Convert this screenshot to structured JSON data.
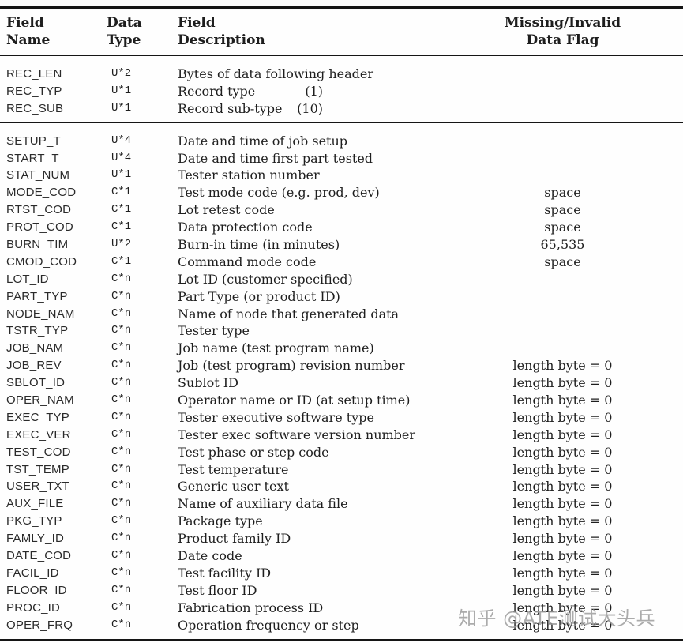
{
  "page": {
    "background": "#fefefe",
    "text_color": "#1e1e1e",
    "rule_color": "#151515"
  },
  "watermark": {
    "text": "知乎 @ATE测试大头兵",
    "color": "#9a9a9a"
  },
  "table": {
    "headers": {
      "field_name": {
        "line1": "Field",
        "line2": "Name"
      },
      "data_type": {
        "line1": "Data",
        "line2": "Type"
      },
      "field_description": {
        "line1": "Field",
        "line2": "Description"
      },
      "missing_flag": {
        "line1": "Missing/Invalid",
        "line2": "Data Flag"
      }
    },
    "sections": [
      {
        "name": "record-header-rows",
        "rows": [
          {
            "name": "REC_LEN",
            "type": "U*2",
            "desc": "Bytes of data following header",
            "note": "",
            "flag": ""
          },
          {
            "name": "REC_TYP",
            "type": "U*1",
            "desc": "Record type",
            "note": "(1)",
            "flag": ""
          },
          {
            "name": "REC_SUB",
            "type": "U*1",
            "desc": "Record sub-type",
            "note": "(10)",
            "flag": ""
          }
        ]
      },
      {
        "name": "record-field-rows",
        "rows": [
          {
            "name": "SETUP_T",
            "type": "U*4",
            "desc": "Date and time of job setup",
            "note": "",
            "flag": ""
          },
          {
            "name": "START_T",
            "type": "U*4",
            "desc": "Date and time first part tested",
            "note": "",
            "flag": ""
          },
          {
            "name": "STAT_NUM",
            "type": "U*1",
            "desc": "Tester station number",
            "note": "",
            "flag": ""
          },
          {
            "name": "MODE_COD",
            "type": "C*1",
            "desc": "Test mode code (e.g. prod, dev)",
            "note": "",
            "flag": "space"
          },
          {
            "name": "RTST_COD",
            "type": "C*1",
            "desc": "Lot retest code",
            "note": "",
            "flag": "space"
          },
          {
            "name": "PROT_COD",
            "type": "C*1",
            "desc": "Data protection code",
            "note": "",
            "flag": "space"
          },
          {
            "name": "BURN_TIM",
            "type": "U*2",
            "desc": "Burn-in time (in minutes)",
            "note": "",
            "flag": "65,535"
          },
          {
            "name": "CMOD_COD",
            "type": "C*1",
            "desc": "Command mode code",
            "note": "",
            "flag": "space"
          },
          {
            "name": "LOT_ID",
            "type": "C*n",
            "desc": "Lot ID (customer specified)",
            "note": "",
            "flag": ""
          },
          {
            "name": "PART_TYP",
            "type": "C*n",
            "desc": "Part Type (or product ID)",
            "note": "",
            "flag": ""
          },
          {
            "name": "NODE_NAM",
            "type": "C*n",
            "desc": "Name of node that generated data",
            "note": "",
            "flag": ""
          },
          {
            "name": "TSTR_TYP",
            "type": "C*n",
            "desc": "Tester type",
            "note": "",
            "flag": ""
          },
          {
            "name": "JOB_NAM",
            "type": "C*n",
            "desc": "Job name (test program name)",
            "note": "",
            "flag": ""
          },
          {
            "name": "JOB_REV",
            "type": "C*n",
            "desc": "Job (test program) revision number",
            "note": "",
            "flag": "length byte = 0"
          },
          {
            "name": "SBLOT_ID",
            "type": "C*n",
            "desc": "Sublot ID",
            "note": "",
            "flag": "length byte = 0"
          },
          {
            "name": "OPER_NAM",
            "type": "C*n",
            "desc": "Operator name or ID (at setup time)",
            "note": "",
            "flag": "length byte = 0"
          },
          {
            "name": "EXEC_TYP",
            "type": "C*n",
            "desc": "Tester executive software type",
            "note": "",
            "flag": "length byte = 0"
          },
          {
            "name": "EXEC_VER",
            "type": "C*n",
            "desc": "Tester exec software version number",
            "note": "",
            "flag": "length byte = 0"
          },
          {
            "name": "TEST_COD",
            "type": "C*n",
            "desc": "Test phase or step code",
            "note": "",
            "flag": "length byte = 0"
          },
          {
            "name": "TST_TEMP",
            "type": "C*n",
            "desc": "Test temperature",
            "note": "",
            "flag": "length byte = 0"
          },
          {
            "name": "USER_TXT",
            "type": "C*n",
            "desc": "Generic user text",
            "note": "",
            "flag": "length byte = 0"
          },
          {
            "name": "AUX_FILE",
            "type": "C*n",
            "desc": "Name of auxiliary data file",
            "note": "",
            "flag": "length byte = 0"
          },
          {
            "name": "PKG_TYP",
            "type": "C*n",
            "desc": "Package type",
            "note": "",
            "flag": "length byte = 0"
          },
          {
            "name": "FAMLY_ID",
            "type": "C*n",
            "desc": "Product family ID",
            "note": "",
            "flag": "length byte = 0"
          },
          {
            "name": "DATE_COD",
            "type": "C*n",
            "desc": "Date code",
            "note": "",
            "flag": "length byte = 0"
          },
          {
            "name": "FACIL_ID",
            "type": "C*n",
            "desc": "Test facility ID",
            "note": "",
            "flag": "length byte = 0"
          },
          {
            "name": "FLOOR_ID",
            "type": "C*n",
            "desc": "Test floor ID",
            "note": "",
            "flag": "length byte = 0"
          },
          {
            "name": "PROC_ID",
            "type": "C*n",
            "desc": "Fabrication process ID",
            "note": "",
            "flag": "length byte = 0"
          },
          {
            "name": "OPER_FRQ",
            "type": "C*n",
            "desc": "Operation frequency or step",
            "note": "",
            "flag": "length byte = 0"
          }
        ]
      }
    ]
  }
}
